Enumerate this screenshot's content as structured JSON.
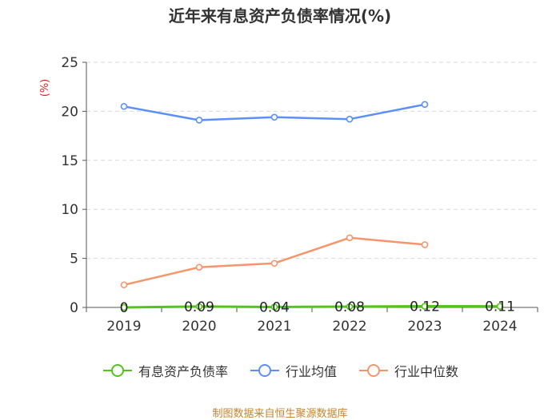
{
  "chart_data": {
    "type": "line",
    "title": "近年来有息资产负债率情况(%)",
    "ylabel": "(%)",
    "categories": [
      "2019",
      "2020",
      "2021",
      "2022",
      "2023",
      "2024"
    ],
    "ylim": [
      0,
      25
    ],
    "yticks": [
      0,
      5,
      10,
      15,
      20,
      25
    ],
    "grid": true,
    "legend_position": "bottom",
    "series": [
      {
        "name": "有息资产负债率",
        "color": "#52c41a",
        "values": [
          0,
          0.09,
          0.04,
          0.08,
          0.12,
          0.11
        ],
        "labels": [
          "0",
          "0.09",
          "0.04",
          "0.08",
          "0.12",
          "0.11"
        ]
      },
      {
        "name": "行业均值",
        "color": "#5b8ff9",
        "values": [
          20.5,
          19.1,
          19.4,
          19.2,
          20.7,
          null
        ]
      },
      {
        "name": "行业中位数",
        "color": "#f6946b",
        "values": [
          2.3,
          4.1,
          4.5,
          7.1,
          6.4,
          null
        ]
      }
    ]
  },
  "source_note": "制图数据来自恒生聚源数据库"
}
